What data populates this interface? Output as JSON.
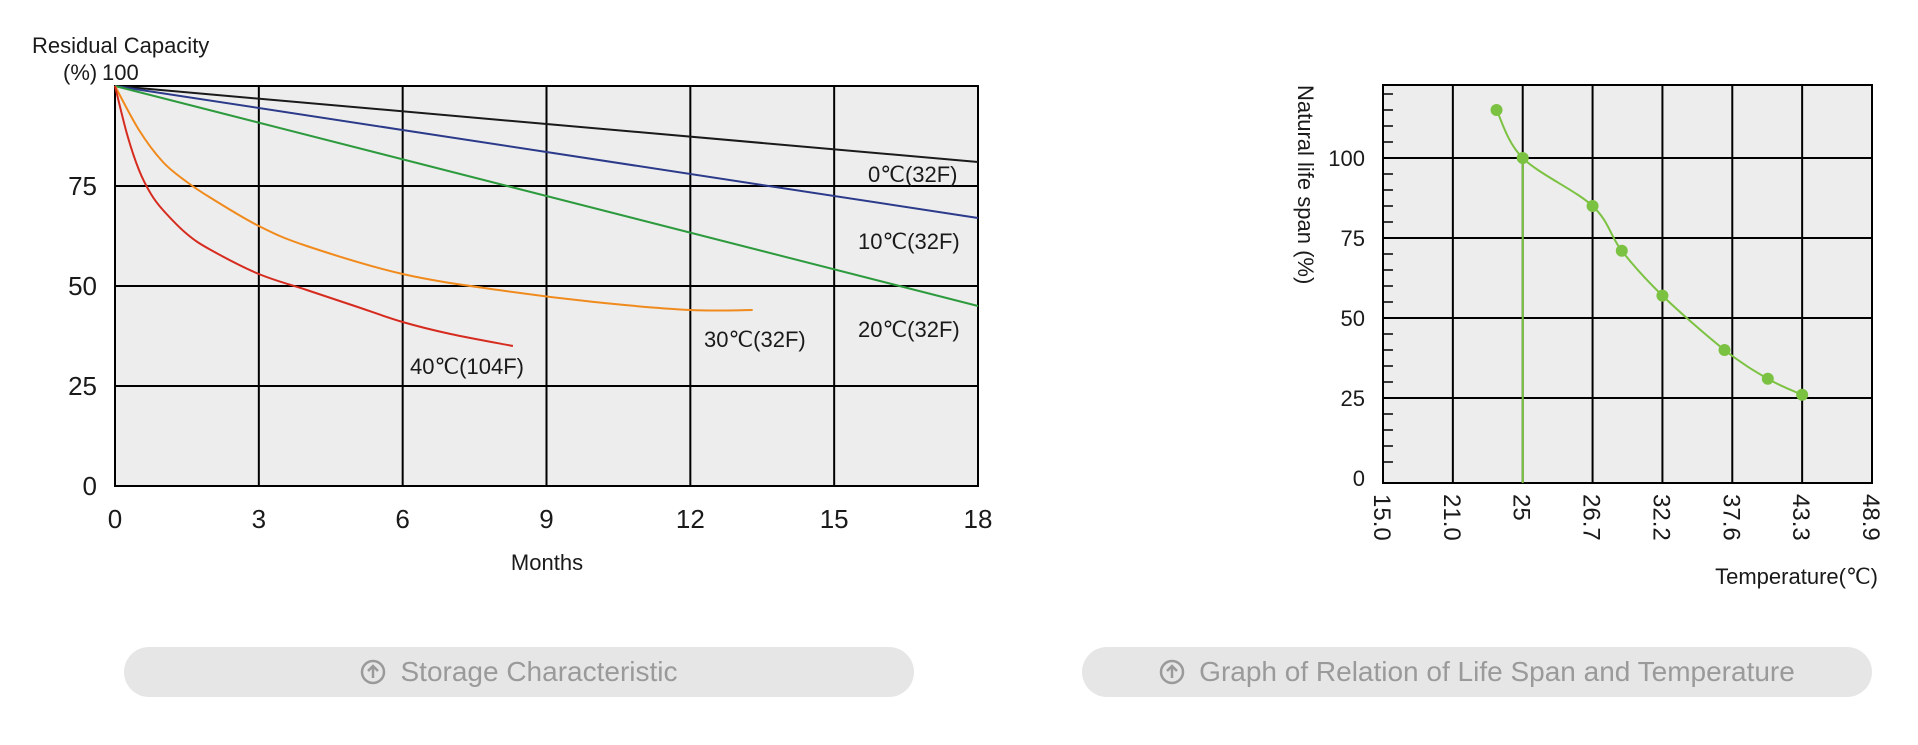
{
  "chart_data": [
    {
      "type": "line",
      "ylabel_line1": "Residual Capacity",
      "ylabel_line2": "(%)",
      "xlabel": "Months",
      "xlim": [
        0,
        18
      ],
      "ylim": [
        0,
        100
      ],
      "x_ticks": [
        "0",
        "3",
        "6",
        "9",
        "12",
        "15",
        "18"
      ],
      "y_ticks": [
        "100",
        "75",
        "50",
        "25",
        "0"
      ],
      "grid": true,
      "series": [
        {
          "name": "0℃(32F)",
          "color": "#1a1a1a",
          "x": [
            0,
            18
          ],
          "y": [
            100,
            81
          ]
        },
        {
          "name": "10℃(32F)",
          "color": "#2b3a8a",
          "x": [
            0,
            18
          ],
          "y": [
            100,
            67
          ]
        },
        {
          "name": "20℃(32F)",
          "color": "#2e9a3e",
          "x": [
            0,
            18
          ],
          "y": [
            100,
            45
          ]
        },
        {
          "name": "30℃(32F)",
          "color": "#f08a1c",
          "x": [
            0,
            0.5,
            1,
            1.5,
            2,
            3,
            4,
            6,
            8,
            10,
            12,
            13.3
          ],
          "y": [
            100,
            89,
            81,
            76,
            72,
            65,
            60,
            53,
            49,
            46,
            44,
            44
          ]
        },
        {
          "name": "40℃(104F)",
          "color": "#d62b1f",
          "x": [
            0,
            0.25,
            0.5,
            0.75,
            1,
            1.5,
            2,
            3,
            4,
            5,
            6,
            7,
            8.3
          ],
          "y": [
            100,
            88,
            79,
            73,
            69,
            63,
            59,
            53,
            49,
            45,
            41,
            38,
            35
          ]
        }
      ],
      "caption": "Storage Characteristic"
    },
    {
      "type": "line",
      "ylabel": "Natural life span (%)",
      "xlabel": "Temperature(℃)",
      "x_ticks": [
        "15.0",
        "21.0",
        "25",
        "26.7",
        "32.2",
        "37.6",
        "43.3",
        "48.9"
      ],
      "y_ticks": [
        "100",
        "75",
        "50",
        "25",
        "0"
      ],
      "grid": true,
      "series": [
        {
          "color": "#7cc242",
          "x": [
            23.5,
            25,
            26.7,
            29,
            32.2,
            37,
            40.5,
            43.3
          ],
          "y": [
            115,
            100,
            85,
            71,
            57,
            40,
            31,
            26
          ]
        }
      ],
      "reference_x": 25,
      "caption": "Graph of Relation of Life Span and Temperature"
    }
  ]
}
